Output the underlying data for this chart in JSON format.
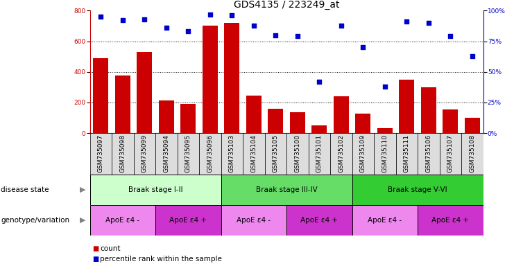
{
  "title": "GDS4135 / 223249_at",
  "samples": [
    "GSM735097",
    "GSM735098",
    "GSM735099",
    "GSM735094",
    "GSM735095",
    "GSM735096",
    "GSM735103",
    "GSM735104",
    "GSM735105",
    "GSM735100",
    "GSM735101",
    "GSM735102",
    "GSM735109",
    "GSM735110",
    "GSM735111",
    "GSM735106",
    "GSM735107",
    "GSM735108"
  ],
  "counts": [
    490,
    375,
    530,
    215,
    190,
    700,
    720,
    245,
    160,
    135,
    50,
    240,
    125,
    30,
    350,
    300,
    155,
    100
  ],
  "percentiles": [
    95,
    92,
    93,
    86,
    83,
    97,
    96,
    88,
    80,
    79,
    42,
    88,
    70,
    38,
    91,
    90,
    79,
    63
  ],
  "ylim_left": [
    0,
    800
  ],
  "ylim_right": [
    0,
    100
  ],
  "yticks_left": [
    0,
    200,
    400,
    600,
    800
  ],
  "yticks_right": [
    0,
    25,
    50,
    75,
    100
  ],
  "bar_color": "#cc0000",
  "dot_color": "#0000cc",
  "disease_state_groups": [
    {
      "label": "Braak stage I-II",
      "start": 0,
      "end": 6,
      "color": "#ccffcc"
    },
    {
      "label": "Braak stage III-IV",
      "start": 6,
      "end": 12,
      "color": "#66dd66"
    },
    {
      "label": "Braak stage V-VI",
      "start": 12,
      "end": 18,
      "color": "#33cc33"
    }
  ],
  "genotype_groups": [
    {
      "label": "ApoE ε4 -",
      "start": 0,
      "end": 3,
      "color": "#ee88ee"
    },
    {
      "label": "ApoE ε4 +",
      "start": 3,
      "end": 6,
      "color": "#cc33cc"
    },
    {
      "label": "ApoE ε4 -",
      "start": 6,
      "end": 9,
      "color": "#ee88ee"
    },
    {
      "label": "ApoE ε4 +",
      "start": 9,
      "end": 12,
      "color": "#cc33cc"
    },
    {
      "label": "ApoE ε4 -",
      "start": 12,
      "end": 15,
      "color": "#ee88ee"
    },
    {
      "label": "ApoE ε4 +",
      "start": 15,
      "end": 18,
      "color": "#cc33cc"
    }
  ],
  "legend_count_label": "count",
  "legend_pct_label": "percentile rank within the sample",
  "disease_label": "disease state",
  "genotype_label": "genotype/variation",
  "background_color": "#ffffff",
  "title_fontsize": 10,
  "tick_fontsize": 6.5,
  "label_fontsize": 7.5,
  "annot_fontsize": 7.5,
  "grid_dotted_color": "#000000"
}
